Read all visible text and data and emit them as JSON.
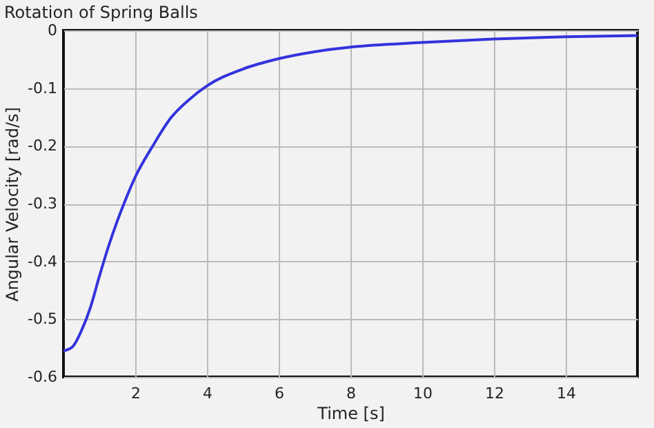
{
  "chart_data": {
    "type": "line",
    "title": "Rotation of Spring Balls",
    "xlabel": "Time [s]",
    "ylabel": "Angular Velocity [rad/s]",
    "x": [
      0,
      0.25,
      0.5,
      0.75,
      1,
      1.25,
      1.5,
      1.75,
      2,
      2.5,
      3,
      3.5,
      4,
      5,
      6,
      7,
      8,
      10,
      12,
      14,
      16
    ],
    "series": [
      {
        "color": "#3333dd",
        "values": [
          -0.555,
          -0.548,
          -0.52,
          -0.48,
          -0.426,
          -0.375,
          -0.33,
          -0.29,
          -0.254,
          -0.199,
          -0.151,
          -0.12,
          -0.096,
          -0.067,
          -0.049,
          -0.037,
          -0.029,
          -0.021,
          -0.015,
          -0.011,
          -0.009
        ]
      }
    ],
    "xlim": [
      0,
      16
    ],
    "xticks": [
      2,
      4,
      6,
      8,
      10,
      12,
      14
    ],
    "ylim": [
      -0.6,
      0
    ],
    "yticks": [
      -0.6,
      -0.5,
      -0.4,
      -0.3,
      -0.2,
      -0.1,
      0
    ],
    "grid": true,
    "marker": "none",
    "line_style": "solid"
  }
}
